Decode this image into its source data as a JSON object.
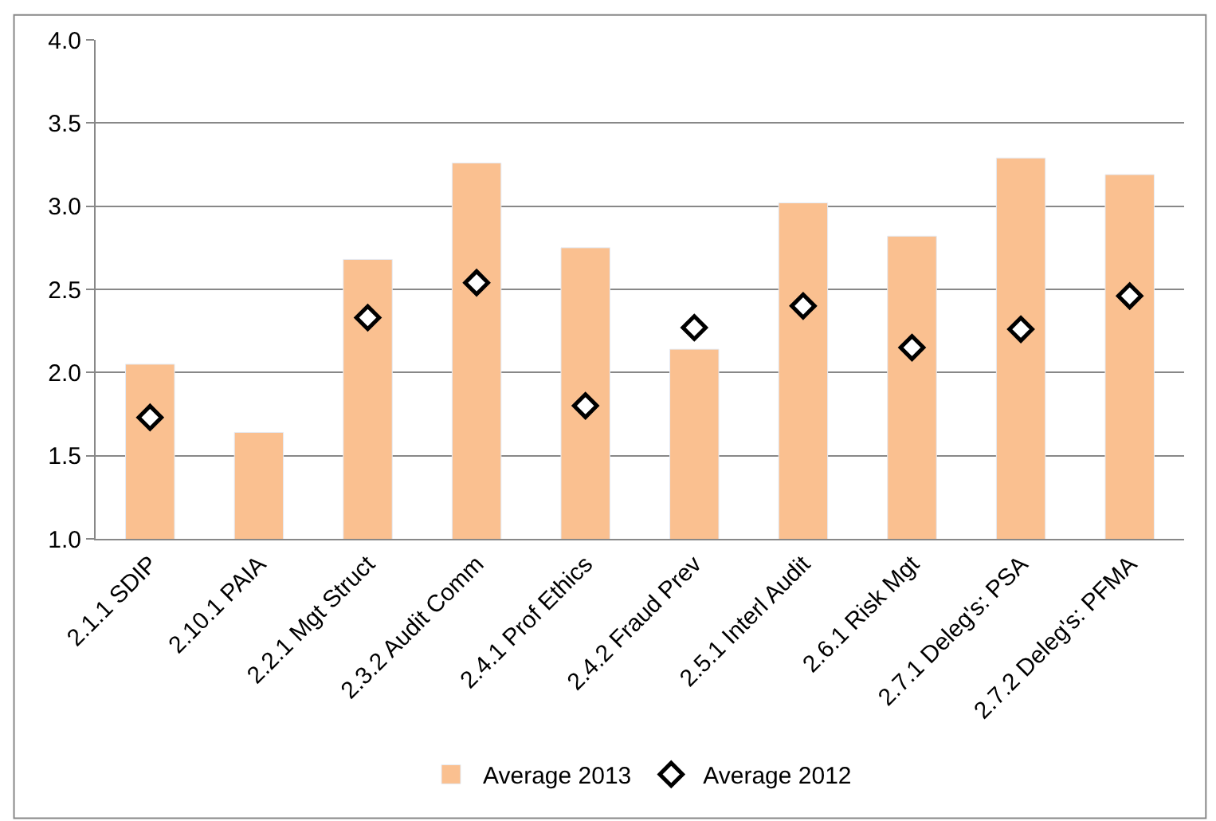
{
  "chart_data": {
    "type": "bar",
    "categories": [
      "2.1.1 SDIP",
      "2.10.1 PAIA",
      "2.2.1 Mgt Struct",
      "2.3.2 Audit Comm",
      "2.4.1 Prof Ethics",
      "2.4.2 Fraud Prev",
      "2.5.1 Interl Audit",
      "2.6.1 Risk Mgt",
      "2.7.1 Deleg's: PSA",
      "2.7.2 Deleg's: PFMA"
    ],
    "series": [
      {
        "name": "Average 2013",
        "color": "#fac090",
        "values": [
          2.05,
          1.64,
          2.68,
          3.26,
          2.75,
          2.14,
          3.02,
          2.82,
          3.29,
          3.19
        ]
      },
      {
        "name": "Average 2012",
        "type": "scatter",
        "marker": "diamond",
        "color": "#000000",
        "values": [
          1.73,
          null,
          2.33,
          2.54,
          1.8,
          2.27,
          2.4,
          2.15,
          2.26,
          2.46
        ]
      }
    ],
    "ylim": [
      1.0,
      4.0
    ],
    "yticks": [
      {
        "value": 1.0,
        "label": "1.0"
      },
      {
        "value": 1.5,
        "label": "1.5"
      },
      {
        "value": 2.0,
        "label": "2.0"
      },
      {
        "value": 2.5,
        "label": "2.5"
      },
      {
        "value": 3.0,
        "label": "3.0"
      },
      {
        "value": 3.5,
        "label": "3.5"
      },
      {
        "value": 4.0,
        "label": "4.0"
      }
    ],
    "grid": "y",
    "legend": "bottom"
  }
}
